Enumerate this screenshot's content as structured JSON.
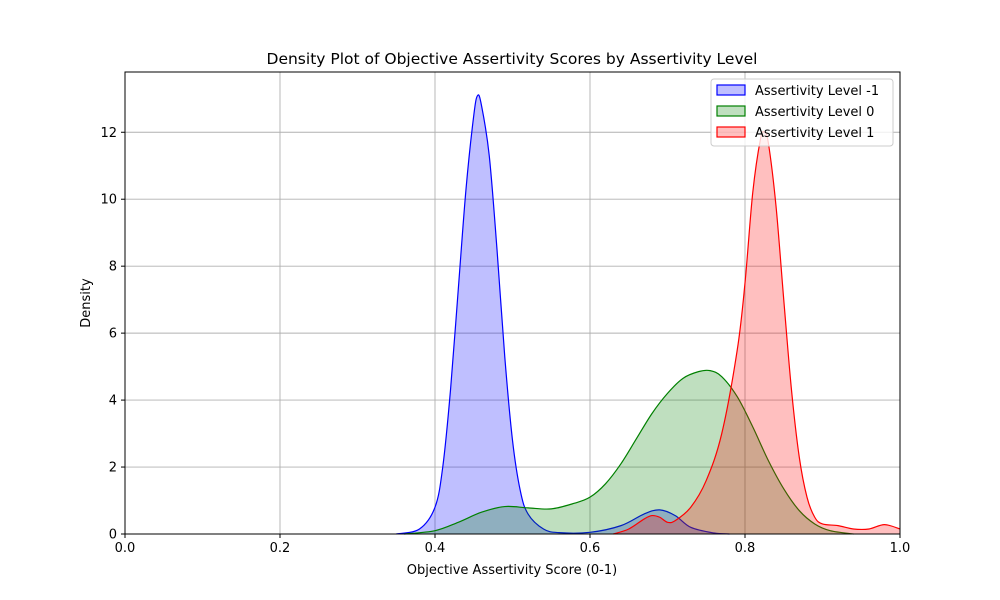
{
  "chart_data": {
    "type": "area",
    "title": "Density Plot of Objective Assertivity Scores by Assertivity Level",
    "xlabel": "Objective Assertivity Score (0-1)",
    "ylabel": "Density",
    "xlim": [
      0.0,
      1.0
    ],
    "ylim": [
      0,
      13.8
    ],
    "xticks": [
      0.0,
      0.2,
      0.4,
      0.6,
      0.8,
      1.0
    ],
    "xtick_labels": [
      "0.0",
      "0.2",
      "0.4",
      "0.6",
      "0.8",
      "1.0"
    ],
    "yticks": [
      0,
      2,
      4,
      6,
      8,
      10,
      12
    ],
    "ytick_labels": [
      "0",
      "2",
      "4",
      "6",
      "8",
      "10",
      "12"
    ],
    "grid": true,
    "legend_position": "top-right",
    "series": [
      {
        "name": "Assertivity Level -1",
        "line_color": "#0000ff",
        "fill_color": "#0000ff",
        "points": [
          [
            0.35,
            0.0
          ],
          [
            0.38,
            0.15
          ],
          [
            0.4,
            0.8
          ],
          [
            0.41,
            2.0
          ],
          [
            0.42,
            4.3
          ],
          [
            0.43,
            7.3
          ],
          [
            0.44,
            10.3
          ],
          [
            0.45,
            12.5
          ],
          [
            0.455,
            13.1
          ],
          [
            0.46,
            12.8
          ],
          [
            0.47,
            11.3
          ],
          [
            0.48,
            8.5
          ],
          [
            0.49,
            5.3
          ],
          [
            0.5,
            2.8
          ],
          [
            0.51,
            1.3
          ],
          [
            0.52,
            0.6
          ],
          [
            0.54,
            0.15
          ],
          [
            0.56,
            0.04
          ],
          [
            0.6,
            0.05
          ],
          [
            0.64,
            0.25
          ],
          [
            0.67,
            0.6
          ],
          [
            0.69,
            0.72
          ],
          [
            0.71,
            0.55
          ],
          [
            0.73,
            0.2
          ],
          [
            0.76,
            0.03
          ],
          [
            0.78,
            0.0
          ]
        ]
      },
      {
        "name": "Assertivity Level 0",
        "line_color": "#008000",
        "fill_color": "#008000",
        "points": [
          [
            0.36,
            0.0
          ],
          [
            0.4,
            0.1
          ],
          [
            0.43,
            0.35
          ],
          [
            0.46,
            0.65
          ],
          [
            0.49,
            0.82
          ],
          [
            0.52,
            0.78
          ],
          [
            0.55,
            0.75
          ],
          [
            0.58,
            0.92
          ],
          [
            0.6,
            1.1
          ],
          [
            0.62,
            1.5
          ],
          [
            0.64,
            2.1
          ],
          [
            0.66,
            2.85
          ],
          [
            0.68,
            3.6
          ],
          [
            0.7,
            4.2
          ],
          [
            0.72,
            4.65
          ],
          [
            0.74,
            4.85
          ],
          [
            0.755,
            4.88
          ],
          [
            0.77,
            4.7
          ],
          [
            0.79,
            4.1
          ],
          [
            0.81,
            3.2
          ],
          [
            0.83,
            2.2
          ],
          [
            0.85,
            1.35
          ],
          [
            0.87,
            0.7
          ],
          [
            0.89,
            0.3
          ],
          [
            0.91,
            0.1
          ],
          [
            0.94,
            0.0
          ]
        ]
      },
      {
        "name": "Assertivity Level 1",
        "line_color": "#ff0000",
        "fill_color": "#ff0000",
        "points": [
          [
            0.63,
            0.0
          ],
          [
            0.65,
            0.15
          ],
          [
            0.67,
            0.45
          ],
          [
            0.68,
            0.55
          ],
          [
            0.69,
            0.5
          ],
          [
            0.7,
            0.35
          ],
          [
            0.71,
            0.4
          ],
          [
            0.73,
            0.8
          ],
          [
            0.75,
            1.6
          ],
          [
            0.77,
            3.0
          ],
          [
            0.79,
            5.5
          ],
          [
            0.8,
            7.5
          ],
          [
            0.81,
            10.2
          ],
          [
            0.82,
            11.8
          ],
          [
            0.825,
            12.0
          ],
          [
            0.83,
            11.7
          ],
          [
            0.84,
            9.8
          ],
          [
            0.85,
            7.0
          ],
          [
            0.86,
            4.3
          ],
          [
            0.87,
            2.3
          ],
          [
            0.88,
            1.1
          ],
          [
            0.89,
            0.5
          ],
          [
            0.9,
            0.3
          ],
          [
            0.92,
            0.25
          ],
          [
            0.94,
            0.15
          ],
          [
            0.96,
            0.15
          ],
          [
            0.98,
            0.28
          ],
          [
            1.0,
            0.15
          ]
        ]
      }
    ]
  }
}
